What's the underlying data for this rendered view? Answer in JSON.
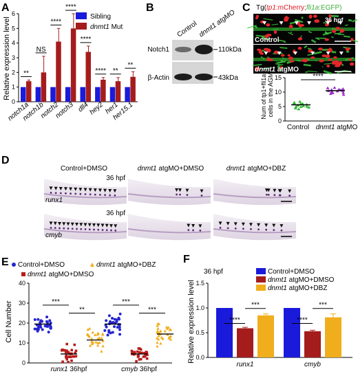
{
  "panels": {
    "A": {
      "letter": "A",
      "chart_data": {
        "type": "bar",
        "ylabel": "Relative expression level",
        "ylim": [
          0,
          6
        ],
        "yticks": [
          "0",
          "1",
          "2",
          "3",
          "4",
          "5",
          "6"
        ],
        "categories": [
          "notch1a",
          "notch1b",
          "notch2",
          "notch3",
          "dll4",
          "hey2",
          "her1",
          "her15.1"
        ],
        "series": [
          {
            "name": "Sibling",
            "color": "#1a1adb",
            "values": [
              1,
              1,
              1,
              1,
              1,
              1,
              1,
              1
            ]
          },
          {
            "name": "dnmt1 Mut",
            "color": "#a51c1c",
            "values": [
              1.4,
              2.0,
              4.1,
              5.0,
              3.4,
              1.5,
              1.4,
              1.7
            ],
            "errors": [
              0.08,
              1.1,
              0.9,
              1.0,
              0.4,
              0.15,
              0.25,
              0.35
            ]
          }
        ],
        "significance": [
          "**",
          "NS",
          "****",
          "****",
          "****",
          "****",
          "**",
          "**"
        ]
      }
    },
    "B": {
      "letter": "B",
      "header": "dnmt1 atgMO",
      "lanes": [
        "Control",
        "dnmt1 atgMO"
      ],
      "rows": [
        {
          "label": "Notch1",
          "size": "110kDa"
        },
        {
          "label": "β-Actin",
          "size": "43kDa"
        }
      ]
    },
    "C": {
      "letter": "C",
      "title_prefix": "Tg(",
      "title_gene1": "tp1",
      "title_mid": ":mCherry;",
      "title_gene2": "fli1a",
      "title_end": ":EGFP)",
      "time": "36 hpf",
      "img1_label": "Control",
      "img2_label": "dnmt1 atgMO",
      "chart_data": {
        "type": "scatter",
        "ylabel_line1": "Num of tp1+fli1a+",
        "ylabel_line2": "cells in the AGM",
        "ylim": [
          0,
          15
        ],
        "yticks": [
          "0",
          "5",
          "10",
          "15"
        ],
        "categories": [
          "Control",
          "dnmt1 atgMO"
        ],
        "series": [
          {
            "name": "Control",
            "color": "#2fb832",
            "mean": 5.6,
            "values": [
              4.5,
              5,
              5.5,
              6,
              6.5,
              5,
              5.8,
              4.8,
              6.2,
              5.3,
              4.2,
              6.8,
              5.6,
              5.1,
              6.1
            ]
          },
          {
            "name": "dnmt1 atgMO",
            "color": "#9b2fc8",
            "mean": 10.5,
            "values": [
              9.5,
              10,
              10.5,
              11,
              11.5,
              10.2,
              9.8,
              10.8,
              11.2,
              10.4,
              9.2,
              11.6,
              10.6,
              9.9,
              10.9
            ]
          }
        ],
        "significance": "****"
      }
    },
    "D": {
      "letter": "D",
      "columns": [
        "Control+DMSO",
        "dnmt1 atgMO+DMSO",
        "dnmt1 atgMO+DBZ"
      ],
      "rows": [
        "runx1",
        "cmyb"
      ],
      "time": "36 hpf"
    },
    "E": {
      "letter": "E",
      "chart_data": {
        "type": "scatter",
        "ylabel": "Cell Number",
        "ylim": [
          0,
          40
        ],
        "yticks": [
          "0",
          "10",
          "20",
          "30",
          "40"
        ],
        "groups": [
          "runx1 36hpf",
          "cmyb 36hpf"
        ],
        "legend": [
          {
            "name": "Control+DMSO",
            "color": "#2424d0",
            "marker": "circle"
          },
          {
            "name": "dnmt1 atgMO+DMSO",
            "color": "#b81c1c",
            "marker": "square"
          },
          {
            "name": "dnmt1 atgMO+DBZ",
            "color": "#f0ae1c",
            "marker": "triangle"
          }
        ],
        "means": [
          [
            19.5,
            4.5,
            11.5
          ],
          [
            19.5,
            4.5,
            14.5
          ]
        ],
        "spread": [
          [
            3.5,
            3.5,
            4
          ],
          [
            4.5,
            2.5,
            4.5
          ]
        ],
        "significance": [
          [
            "***",
            "**"
          ],
          [
            "***",
            "***"
          ]
        ]
      }
    },
    "F": {
      "letter": "F",
      "time": "36 hpf",
      "chart_data": {
        "type": "bar",
        "ylabel": "Relative expression level",
        "ylim": [
          0,
          1.5
        ],
        "yticks": [
          "0.0",
          "0.5",
          "1.0",
          "1.5"
        ],
        "categories": [
          "runx1",
          "cmyb"
        ],
        "series": [
          {
            "name": "Control+DMSO",
            "color": "#1a1adb",
            "values": [
              1.0,
              1.0
            ],
            "errors": [
              0,
              0
            ]
          },
          {
            "name": "dnmt1 atgMO+DMSO",
            "color": "#a51c1c",
            "values": [
              0.59,
              0.53
            ],
            "errors": [
              0.02,
              0.02
            ]
          },
          {
            "name": "dnmt1 atgMO+DBZ",
            "color": "#f0ae1c",
            "values": [
              0.85,
              0.81
            ],
            "errors": [
              0.03,
              0.07
            ]
          }
        ],
        "significance": [
          [
            "****",
            "***"
          ],
          [
            "****",
            "***"
          ]
        ]
      }
    }
  }
}
